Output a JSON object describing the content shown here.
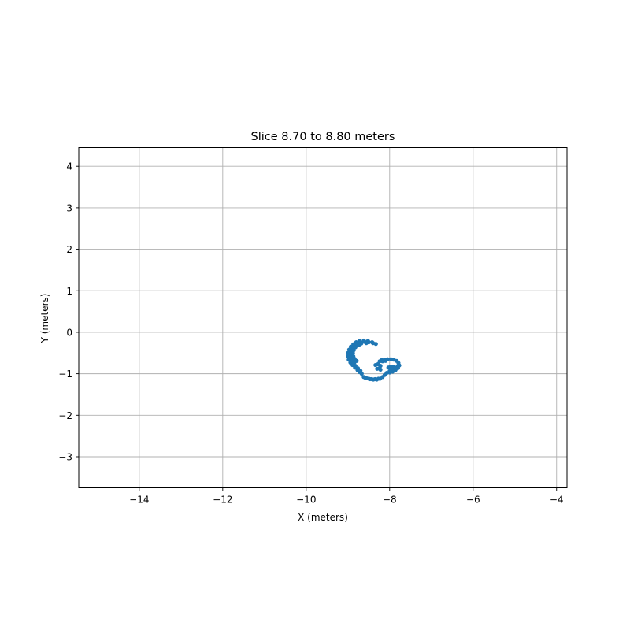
{
  "chart_data": {
    "type": "scatter",
    "title": "Slice 8.70 to 8.80 meters",
    "xlabel": "X (meters)",
    "ylabel": "Y (meters)",
    "xlim": [
      -15.45,
      -3.75
    ],
    "ylim": [
      -3.75,
      4.45
    ],
    "xticks": [
      -14,
      -12,
      -10,
      -8,
      -6,
      -4
    ],
    "xtick_labels": [
      "−14",
      "−12",
      "−10",
      "−8",
      "−6",
      "−4"
    ],
    "yticks": [
      -3,
      -2,
      -1,
      0,
      1,
      2,
      3,
      4
    ],
    "ytick_labels": [
      "−3",
      "−2",
      "−1",
      "0",
      "1",
      "2",
      "3",
      "4"
    ],
    "grid": true,
    "series": [
      {
        "color": "#1f77b4",
        "points": [
          [
            -8.33,
            -0.28
          ],
          [
            -8.42,
            -0.24
          ],
          [
            -8.52,
            -0.21
          ],
          [
            -8.62,
            -0.2
          ],
          [
            -8.72,
            -0.21
          ],
          [
            -8.8,
            -0.24
          ],
          [
            -8.87,
            -0.29
          ],
          [
            -8.93,
            -0.35
          ],
          [
            -8.97,
            -0.42
          ],
          [
            -9.0,
            -0.5
          ],
          [
            -9.0,
            -0.58
          ],
          [
            -8.98,
            -0.66
          ],
          [
            -8.94,
            -0.73
          ],
          [
            -8.89,
            -0.79
          ],
          [
            -8.83,
            -0.85
          ],
          [
            -8.77,
            -0.91
          ],
          [
            -8.72,
            -0.96
          ],
          [
            -8.67,
            -1.0
          ],
          [
            -8.4,
            -0.26
          ],
          [
            -8.5,
            -0.24
          ],
          [
            -8.6,
            -0.23
          ],
          [
            -8.7,
            -0.24
          ],
          [
            -8.78,
            -0.27
          ],
          [
            -8.85,
            -0.32
          ],
          [
            -8.9,
            -0.38
          ],
          [
            -8.94,
            -0.45
          ],
          [
            -8.96,
            -0.53
          ],
          [
            -8.95,
            -0.61
          ],
          [
            -8.92,
            -0.68
          ],
          [
            -8.87,
            -0.75
          ],
          [
            -8.82,
            -0.81
          ],
          [
            -8.76,
            -0.87
          ],
          [
            -8.7,
            -0.93
          ],
          [
            -8.56,
            -0.26
          ],
          [
            -8.68,
            -0.27
          ],
          [
            -8.78,
            -0.31
          ],
          [
            -8.86,
            -0.37
          ],
          [
            -8.9,
            -0.44
          ],
          [
            -8.92,
            -0.52
          ],
          [
            -8.91,
            -0.6
          ],
          [
            -8.88,
            -0.66
          ],
          [
            -8.84,
            -0.72
          ],
          [
            -8.74,
            -0.31
          ],
          [
            -8.82,
            -0.36
          ],
          [
            -8.86,
            -0.43
          ],
          [
            -8.88,
            -0.5
          ],
          [
            -8.87,
            -0.58
          ],
          [
            -8.84,
            -0.64
          ],
          [
            -8.79,
            -0.69
          ],
          [
            -8.62,
            -1.08
          ],
          [
            -8.55,
            -1.11
          ],
          [
            -8.47,
            -1.13
          ],
          [
            -8.39,
            -1.14
          ],
          [
            -8.31,
            -1.14
          ],
          [
            -8.23,
            -1.12
          ],
          [
            -8.17,
            -1.08
          ],
          [
            -8.12,
            -1.03
          ],
          [
            -8.07,
            -0.98
          ],
          [
            -8.0,
            -0.97
          ],
          [
            -7.93,
            -0.95
          ],
          [
            -7.86,
            -0.91
          ],
          [
            -7.8,
            -0.86
          ],
          [
            -7.77,
            -0.8
          ],
          [
            -7.79,
            -0.74
          ],
          [
            -7.83,
            -0.69
          ],
          [
            -7.9,
            -0.66
          ],
          [
            -7.97,
            -0.65
          ],
          [
            -8.05,
            -0.65
          ],
          [
            -8.12,
            -0.66
          ],
          [
            -8.19,
            -0.67
          ],
          [
            -8.24,
            -0.7
          ],
          [
            -8.58,
            -1.1
          ],
          [
            -8.5,
            -1.12
          ],
          [
            -8.43,
            -1.13
          ],
          [
            -8.35,
            -1.13
          ],
          [
            -8.27,
            -1.12
          ],
          [
            -8.0,
            -0.94
          ],
          [
            -7.92,
            -0.92
          ],
          [
            -7.85,
            -0.88
          ],
          [
            -7.81,
            -0.82
          ],
          [
            -8.1,
            -0.69
          ],
          [
            -8.17,
            -0.7
          ],
          [
            -8.28,
            -0.77
          ],
          [
            -8.34,
            -0.79
          ],
          [
            -8.22,
            -0.81
          ],
          [
            -8.25,
            -0.87
          ],
          [
            -8.3,
            -0.88
          ],
          [
            -8.22,
            -0.9
          ],
          [
            -7.98,
            -0.83
          ],
          [
            -7.92,
            -0.83
          ],
          [
            -8.03,
            -0.85
          ],
          [
            -7.95,
            -0.87
          ],
          [
            -7.87,
            -0.86
          ]
        ]
      }
    ]
  }
}
